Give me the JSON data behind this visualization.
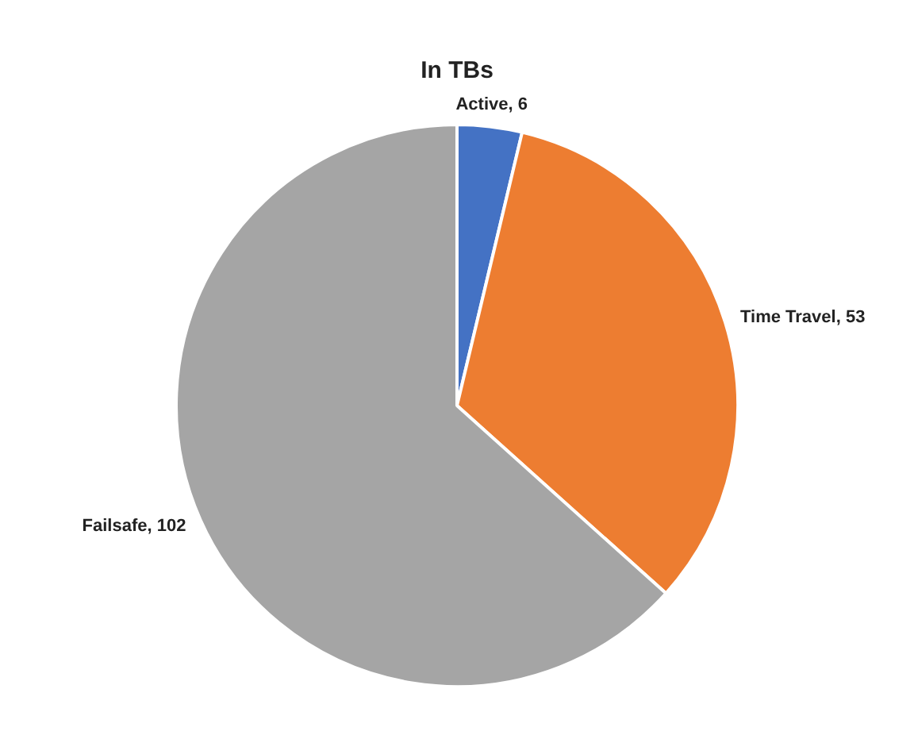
{
  "chart_data": {
    "type": "pie",
    "title": "In TBs",
    "categories": [
      "Active",
      "Time Travel",
      "Failsafe"
    ],
    "values": [
      6,
      53,
      102
    ],
    "value_labels": [
      ", 6",
      ", 53",
      ", 102"
    ],
    "colors": [
      "#4472c4",
      "#ed7d31",
      "#a5a5a5"
    ],
    "legend": false
  }
}
